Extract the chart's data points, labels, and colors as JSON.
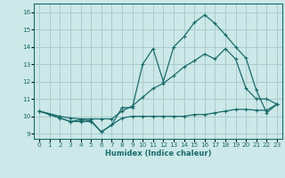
{
  "xlabel": "Humidex (Indice chaleur)",
  "bg_color": "#cce8e8",
  "grid_color": "#aacccc",
  "line_color": "#1a6b6b",
  "xlim": [
    -0.5,
    23.5
  ],
  "ylim": [
    8.7,
    16.5
  ],
  "xticks": [
    0,
    1,
    2,
    3,
    4,
    5,
    6,
    7,
    8,
    9,
    10,
    11,
    12,
    13,
    14,
    15,
    16,
    17,
    18,
    19,
    20,
    21,
    22,
    23
  ],
  "yticks": [
    9,
    10,
    11,
    12,
    13,
    14,
    15,
    16
  ],
  "series1_x": [
    0,
    1,
    2,
    3,
    4,
    5,
    6,
    7,
    8,
    9,
    10,
    11,
    12,
    13,
    14,
    15,
    16,
    17,
    18,
    19,
    20,
    21,
    22,
    23
  ],
  "series1_y": [
    10.3,
    10.1,
    9.9,
    9.7,
    9.8,
    9.75,
    9.1,
    9.5,
    9.9,
    10.0,
    10.0,
    10.0,
    10.0,
    10.0,
    10.0,
    10.1,
    10.1,
    10.2,
    10.3,
    10.4,
    10.4,
    10.35,
    10.35,
    10.7
  ],
  "series2_x": [
    0,
    2,
    3,
    4,
    5,
    6,
    7,
    8,
    9,
    10,
    11,
    12,
    13,
    14,
    15,
    16,
    17,
    18,
    19,
    20,
    21,
    22,
    23
  ],
  "series2_y": [
    10.3,
    10.0,
    9.9,
    9.85,
    9.85,
    9.85,
    9.85,
    10.3,
    10.6,
    11.1,
    11.6,
    11.9,
    12.35,
    12.85,
    13.2,
    13.6,
    13.3,
    13.9,
    13.3,
    11.6,
    11.0,
    11.0,
    10.7
  ],
  "series3_x": [
    0,
    2,
    3,
    4,
    5,
    6,
    7,
    8,
    9,
    10,
    11,
    12,
    13,
    14,
    15,
    16,
    17,
    18,
    19,
    20,
    21,
    22,
    23
  ],
  "series3_y": [
    10.3,
    9.9,
    9.7,
    9.7,
    9.7,
    9.1,
    9.5,
    10.5,
    10.5,
    13.0,
    13.9,
    12.0,
    14.0,
    14.6,
    15.4,
    15.85,
    15.35,
    14.7,
    14.0,
    13.35,
    11.5,
    10.2,
    10.7
  ]
}
